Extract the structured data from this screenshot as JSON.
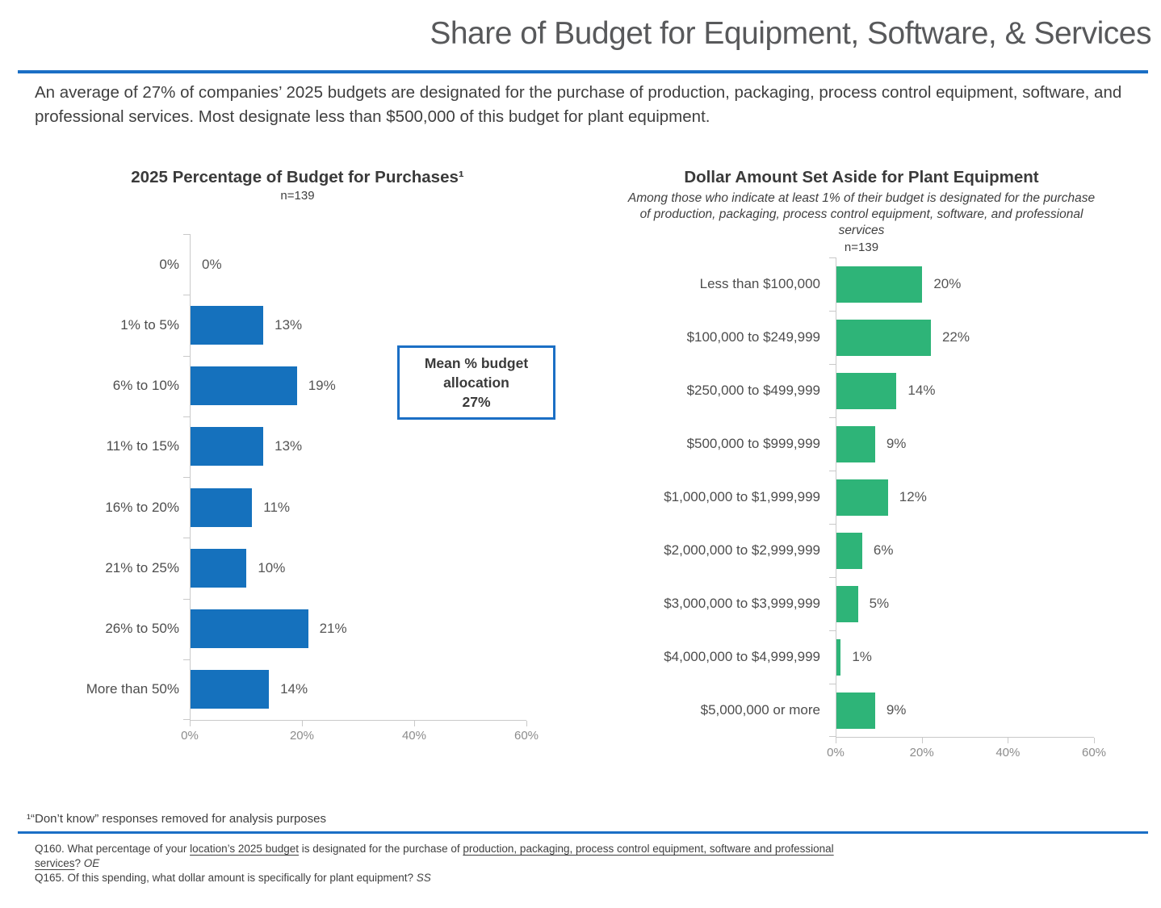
{
  "header": {
    "title": "Share of Budget for Equipment, Software, & Services",
    "subtitle": "An average of 27% of companies’ 2025 budgets are designated for the purchase of production, packaging, process control equipment, software, and professional services. Most designate less than $500,000 of this budget for plant equipment."
  },
  "colors": {
    "accent_blue": "#1b6fc5",
    "bar_blue": "#1571bd",
    "bar_green": "#2eb478",
    "axis_gray": "#c9c9c9"
  },
  "mean_box": {
    "label": "Mean % budget allocation",
    "value": "27%"
  },
  "chart_data": [
    {
      "type": "bar",
      "orientation": "horizontal",
      "title": "2025 Percentage of Budget for Purchases¹",
      "n_label": "n=139",
      "categories": [
        "0%",
        "1% to 5%",
        "6% to 10%",
        "11% to 15%",
        "16% to 20%",
        "21% to 25%",
        "26% to 50%",
        "More than 50%"
      ],
      "values": [
        0,
        13,
        19,
        13,
        11,
        10,
        21,
        14
      ],
      "value_labels": [
        "0%",
        "13%",
        "19%",
        "13%",
        "11%",
        "10%",
        "21%",
        "14%"
      ],
      "xlim": [
        0,
        60
      ],
      "x_ticks": [
        "0%",
        "20%",
        "40%",
        "60%"
      ],
      "bar_color": "#1571bd",
      "grid": false,
      "legend": false
    },
    {
      "type": "bar",
      "orientation": "horizontal",
      "title": "Dollar Amount Set Aside for Plant Equipment",
      "subtitle": "Among those who indicate at least 1% of their budget is designated for the purchase of production, packaging, process control equipment, software, and professional services",
      "n_label": "n=139",
      "categories": [
        "Less than $100,000",
        "$100,000 to $249,999",
        "$250,000 to $499,999",
        "$500,000 to $999,999",
        "$1,000,000 to $1,999,999",
        "$2,000,000 to $2,999,999",
        "$3,000,000 to $3,999,999",
        "$4,000,000 to $4,999,999",
        "$5,000,000 or more"
      ],
      "values": [
        20,
        22,
        14,
        9,
        12,
        6,
        5,
        1,
        9
      ],
      "value_labels": [
        "20%",
        "22%",
        "14%",
        "9%",
        "12%",
        "6%",
        "5%",
        "1%",
        "9%"
      ],
      "xlim": [
        0,
        60
      ],
      "x_ticks": [
        "0%",
        "20%",
        "40%",
        "60%"
      ],
      "bar_color": "#2eb478",
      "grid": false,
      "legend": false
    }
  ],
  "footnotes": {
    "note1": "¹“Don’t know” responses removed for analysis purposes",
    "q160": {
      "prefix": "Q160. What percentage of your ",
      "u1": "location’s 2025 budget",
      "mid": " is designated for the purchase of ",
      "u2": "production, packaging, process control equipment, software and professional services",
      "suffix": "? ",
      "tag": "OE"
    },
    "q165": {
      "text": "Q165. Of this spending, what dollar amount is specifically for plant equipment? ",
      "tag": "SS"
    }
  }
}
